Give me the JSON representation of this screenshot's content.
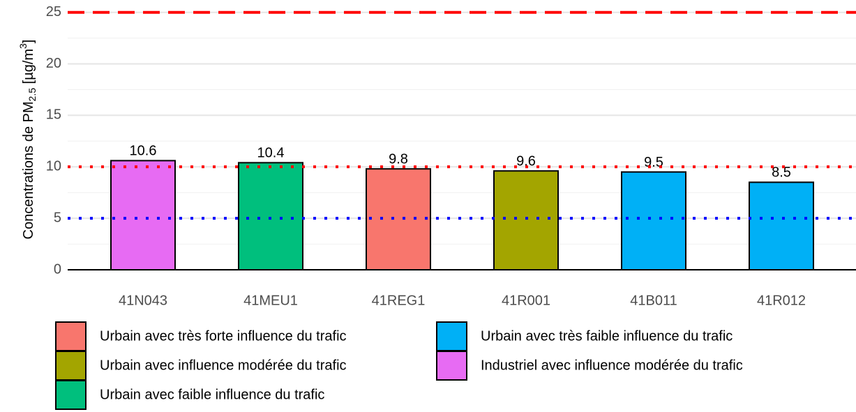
{
  "chart_data": {
    "type": "bar",
    "ylabel_parts": [
      "Concentrations de PM",
      "2.5",
      " [µg/m",
      "3",
      "]"
    ],
    "categories": [
      "41N043",
      "41MEU1",
      "41REG1",
      "41R001",
      "41B011",
      "41R012"
    ],
    "values": [
      10.6,
      10.4,
      9.8,
      9.6,
      9.5,
      8.5
    ],
    "colors": [
      "#E76BF3",
      "#00BF7D",
      "#F8766D",
      "#A3A500",
      "#00B0F6",
      "#00B0F6"
    ],
    "ylim": [
      0,
      26.2
    ],
    "yticks": [
      0,
      5,
      10,
      15,
      20,
      25
    ],
    "minor_yticks": [
      2.5,
      7.5,
      12.5,
      17.5,
      22.5
    ],
    "grid": true,
    "reference_lines": [
      {
        "value": 25,
        "color": "#FF0000",
        "style": "dashed"
      },
      {
        "value": 10,
        "color": "#FF0000",
        "style": "dotted"
      },
      {
        "value": 5,
        "color": "#0000FF",
        "style": "dotted"
      }
    ],
    "legend": [
      {
        "name": "Urbain avec très forte influence du trafic",
        "color": "#F8766D"
      },
      {
        "name": "Urbain avec influence modérée du trafic",
        "color": "#A3A500"
      },
      {
        "name": "Urbain avec faible influence du trafic",
        "color": "#00BF7D"
      },
      {
        "name": "Urbain avec très faible influence du trafic",
        "color": "#00B0F6"
      },
      {
        "name": "Industriel avec influence modérée du trafic",
        "color": "#E76BF3"
      }
    ]
  }
}
